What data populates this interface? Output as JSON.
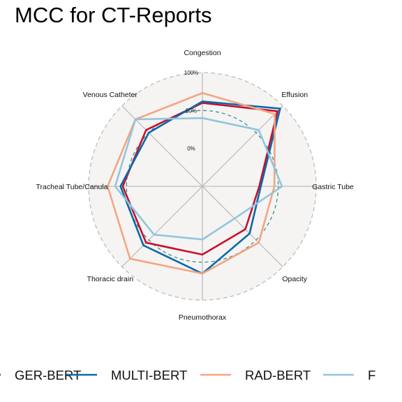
{
  "chart_data": {
    "type": "radar",
    "title": "MCC for CT-Reports",
    "axes": [
      "Congestion",
      "Effusion",
      "Gastric Tube",
      "Opacity",
      "Pneumothorax",
      "Thoracic drain",
      "Tracheal Tube/Canula",
      "Venous Catheter"
    ],
    "rlim": [
      -0.5,
      1.0
    ],
    "reference_ring": {
      "value": 0.5,
      "label": "50%",
      "color": "#2a8a8a",
      "style": "dashed"
    },
    "ring_labels": [
      {
        "value": 0.0,
        "label": "0%"
      },
      {
        "value": 0.5,
        "label": "50%"
      },
      {
        "value": 1.0,
        "label": "100%"
      }
    ],
    "background_color": "#f5f4f2",
    "grid_color": "#bdbdbd",
    "legend_position": "bottom",
    "series": [
      {
        "name": "GER-BERT",
        "color": "#c8102e",
        "values": [
          0.6,
          0.9,
          0.25,
          0.3,
          0.4,
          0.55,
          0.55,
          0.55
        ]
      },
      {
        "name": "MULTI-BERT",
        "color": "#0a6aab",
        "values": [
          0.62,
          0.95,
          0.27,
          0.38,
          0.65,
          0.6,
          0.58,
          0.5
        ]
      },
      {
        "name": "RAD-BERT",
        "color": "#f4a582",
        "values": [
          0.73,
          0.85,
          0.45,
          0.55,
          0.65,
          0.85,
          0.75,
          0.75
        ]
      },
      {
        "name": "F",
        "color": "#92c5de",
        "values": [
          0.4,
          0.55,
          0.55,
          0.1,
          0.2,
          0.4,
          0.65,
          0.75
        ]
      }
    ]
  }
}
